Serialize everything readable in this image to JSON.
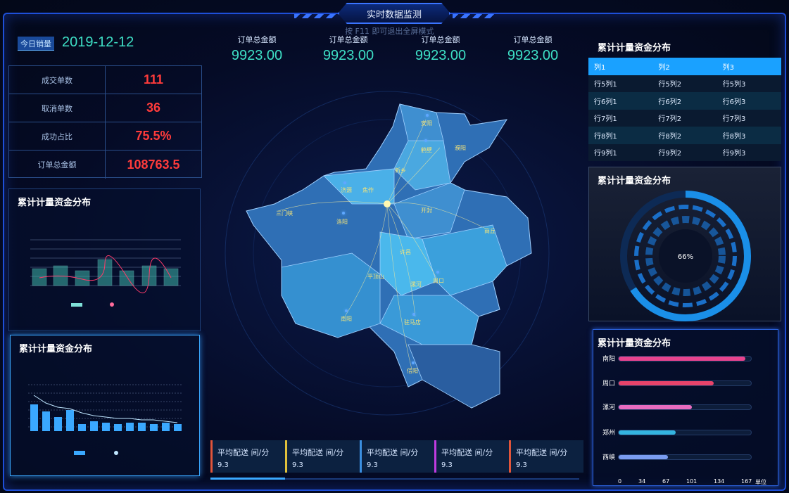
{
  "header": {
    "title": "实时数据监测",
    "fullscreen_hint": "按 F11 即可退出全屏模式"
  },
  "left": {
    "today_tag": "今日销量",
    "date": "2019-12-12",
    "stats": [
      {
        "label": "成交单数",
        "value": "111"
      },
      {
        "label": "取消单数",
        "value": "36"
      },
      {
        "label": "成功占比",
        "value": "75.5%"
      },
      {
        "label": "订单总金额",
        "value": "108763.5"
      }
    ],
    "chart1_title": "累计计量资金分布",
    "chart2_title": "累计计量资金分布"
  },
  "center": {
    "kpis": [
      {
        "label": "订单总金额",
        "value": "9923.00"
      },
      {
        "label": "订单总金额",
        "value": "9923.00"
      },
      {
        "label": "订单总金额",
        "value": "9923.00"
      },
      {
        "label": "订单总金额",
        "value": "9923.00"
      }
    ],
    "cities": [
      "安阳",
      "鹤壁",
      "濮阳",
      "新乡",
      "济源",
      "焦作",
      "三门峡",
      "洛阳",
      "开封",
      "商丘",
      "许昌",
      "平顶山",
      "漯河",
      "周口",
      "南阳",
      "驻马店",
      "信阳"
    ],
    "bottom_cards": [
      {
        "label": "平均配送 间/分",
        "value": "9.3",
        "edge": "#e0553b"
      },
      {
        "label": "平均配送 间/分",
        "value": "9.3",
        "edge": "#e0c03b"
      },
      {
        "label": "平均配送 间/分",
        "value": "9.3",
        "edge": "#3b8fe0"
      },
      {
        "label": "平均配送 间/分",
        "value": "9.3",
        "edge": "#c03be0"
      },
      {
        "label": "平均配送 间/分",
        "value": "9.3",
        "edge": "#e0553b"
      }
    ]
  },
  "right": {
    "table_title": "累计计量资金分布",
    "table_header": [
      "列1",
      "列2",
      "列3"
    ],
    "table_rows": [
      [
        "行5列1",
        "行5列2",
        "行5列3"
      ],
      [
        "行6列1",
        "行6列2",
        "行6列3"
      ],
      [
        "行7列1",
        "行7列2",
        "行7列3"
      ],
      [
        "行8列1",
        "行8列2",
        "行8列3"
      ],
      [
        "行9列1",
        "行9列2",
        "行9列3"
      ]
    ],
    "gauge_title": "累计计量资金分布",
    "gauge_value": "66%",
    "gauge_fraction": 0.66,
    "bars_title": "累计计量资金分布",
    "bars": [
      {
        "label": "南阳",
        "value": 160,
        "color": "#e8438e"
      },
      {
        "label": "周口",
        "value": 120,
        "color": "#e8436a"
      },
      {
        "label": "漯河",
        "value": 92,
        "color": "#e86cc0"
      },
      {
        "label": "郑州",
        "value": 72,
        "color": "#34b4e0"
      },
      {
        "label": "西峡",
        "value": 62,
        "color": "#7a9cf0"
      }
    ],
    "bar_axis": [
      "0",
      "34",
      "67",
      "101",
      "134",
      "167",
      "单位"
    ],
    "bar_max": 167
  }
}
